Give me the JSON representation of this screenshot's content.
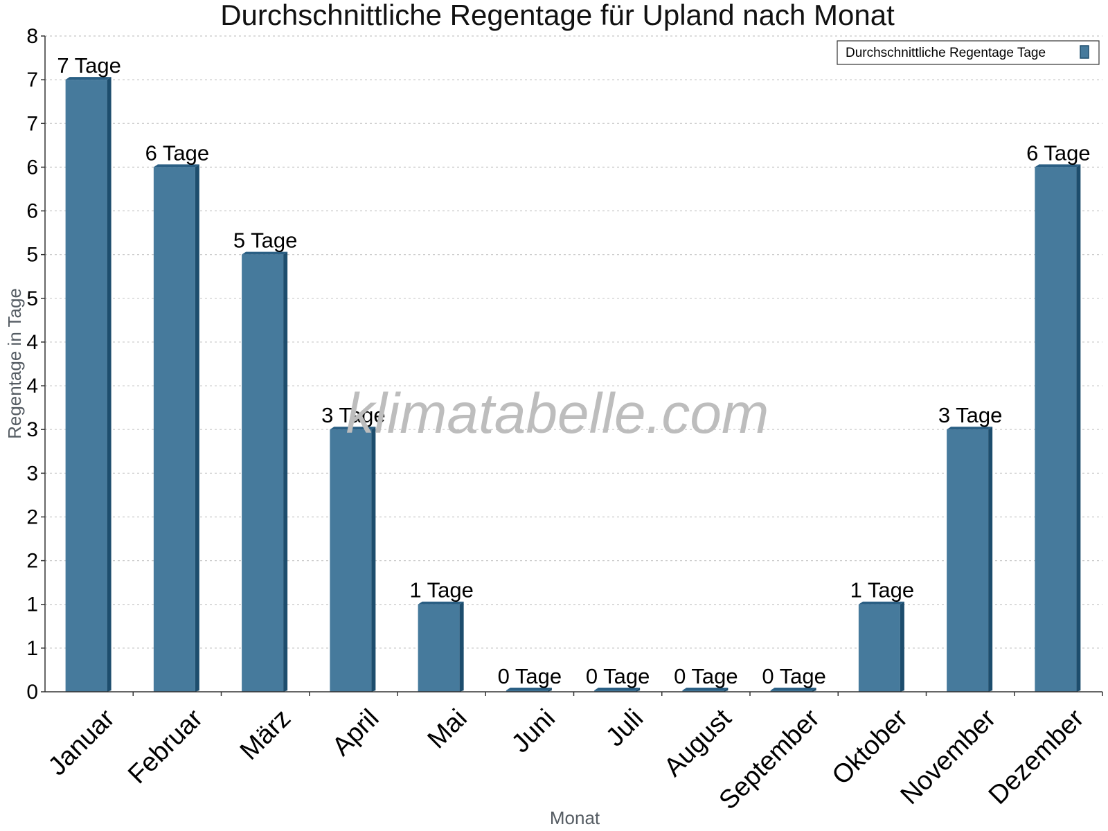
{
  "chart_data": {
    "type": "bar",
    "title": "Durchschnittliche Regentage für Upland nach Monat",
    "xlabel": "Monat",
    "ylabel": "Regentage in Tage",
    "categories": [
      "Januar",
      "Februar",
      "März",
      "April",
      "Mai",
      "Juni",
      "Juli",
      "August",
      "September",
      "Oktober",
      "November",
      "Dezember"
    ],
    "series": [
      {
        "name": "Durchschnittliche Regentage Tage",
        "values": [
          7,
          6,
          5,
          3,
          1,
          0,
          0,
          0,
          0,
          1,
          3,
          6
        ],
        "labels": [
          "7 Tage",
          "6 Tage",
          "5 Tage",
          "3 Tage",
          "1 Tage",
          "0 Tage",
          "0 Tage",
          "0 Tage",
          "0 Tage",
          "1 Tage",
          "3 Tage",
          "6 Tage"
        ]
      }
    ],
    "ylim": [
      0,
      7.5
    ],
    "y_tick_labels": [
      "0",
      "1",
      "1",
      "2",
      "2",
      "3",
      "3",
      "4",
      "4",
      "5",
      "5",
      "6",
      "6",
      "7",
      "7",
      "8"
    ],
    "grid": true,
    "legend_position": "top-right",
    "colors": {
      "bar": "#467a9c",
      "bar_side": "#1d4d6d",
      "bar_top": "#2a5f84"
    }
  },
  "watermark": "klimatabelle.com"
}
